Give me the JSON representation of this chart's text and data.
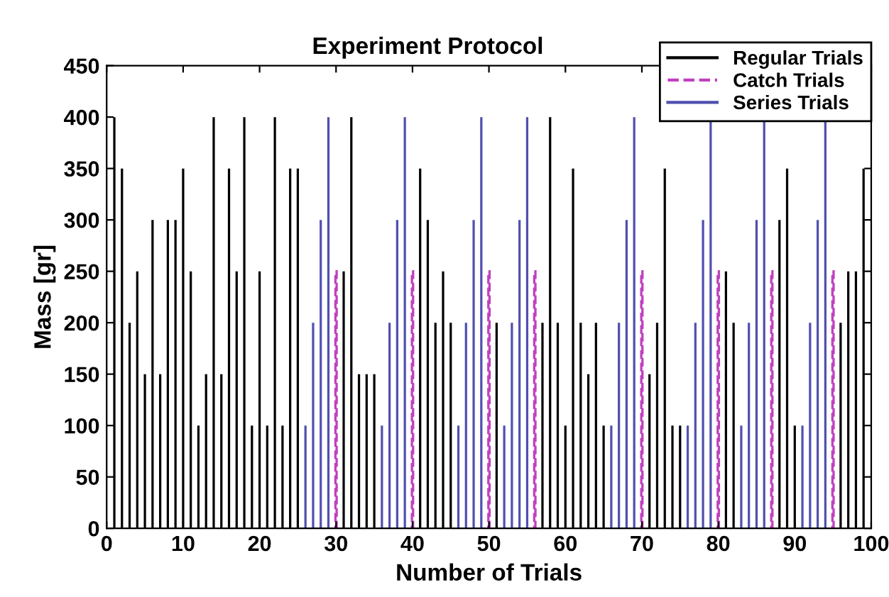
{
  "chart_data": {
    "type": "bar",
    "title": "Experiment Protocol",
    "xlabel": "Number of Trials",
    "ylabel": "Mass [gr]",
    "xlim": [
      0,
      100
    ],
    "xticks": [
      0,
      10,
      20,
      30,
      40,
      50,
      60,
      70,
      80,
      90,
      100
    ],
    "ylim": [
      0,
      450
    ],
    "yticks": [
      0,
      50,
      100,
      150,
      200,
      250,
      300,
      350,
      400,
      450
    ],
    "grid": false,
    "legend": "top right",
    "series": [
      {
        "name": "Regular Trials",
        "color": "#000000",
        "line_style": "solid",
        "x": [
          1,
          2,
          3,
          4,
          5,
          6,
          7,
          8,
          9,
          10,
          11,
          12,
          13,
          14,
          15,
          16,
          17,
          18,
          19,
          20,
          21,
          22,
          23,
          24,
          25,
          31,
          32,
          33,
          34,
          35,
          41,
          42,
          43,
          44,
          45,
          51,
          57,
          58,
          59,
          60,
          61,
          62,
          63,
          64,
          65,
          71,
          72,
          73,
          74,
          75,
          81,
          82,
          88,
          89,
          90,
          96,
          97,
          98,
          99
        ],
        "values": [
          400,
          350,
          200,
          250,
          150,
          300,
          150,
          300,
          300,
          350,
          250,
          100,
          150,
          400,
          150,
          350,
          250,
          400,
          100,
          250,
          100,
          400,
          100,
          350,
          350,
          250,
          400,
          150,
          150,
          150,
          350,
          300,
          200,
          250,
          200,
          200,
          200,
          400,
          200,
          100,
          350,
          200,
          150,
          200,
          100,
          150,
          200,
          350,
          100,
          100,
          250,
          200,
          300,
          350,
          100,
          200,
          250,
          250,
          350
        ]
      },
      {
        "name": "Catch Trials",
        "color": "#c040c0",
        "line_style": "dashed",
        "x": [
          30,
          40,
          50,
          56,
          70,
          80,
          87,
          95
        ],
        "values": [
          250,
          250,
          250,
          250,
          250,
          250,
          250,
          250
        ]
      },
      {
        "name": "Series Trials",
        "color": "#5050b0",
        "line_style": "solid",
        "x": [
          26,
          27,
          28,
          29,
          36,
          37,
          38,
          39,
          46,
          47,
          48,
          49,
          52,
          53,
          54,
          55,
          66,
          67,
          68,
          69,
          76,
          77,
          78,
          79,
          83,
          84,
          85,
          86,
          91,
          92,
          93,
          94
        ],
        "values": [
          100,
          200,
          300,
          400,
          100,
          200,
          300,
          400,
          100,
          200,
          300,
          400,
          100,
          200,
          300,
          400,
          100,
          200,
          300,
          400,
          100,
          200,
          300,
          400,
          100,
          200,
          300,
          400,
          100,
          200,
          300,
          400
        ]
      }
    ]
  }
}
